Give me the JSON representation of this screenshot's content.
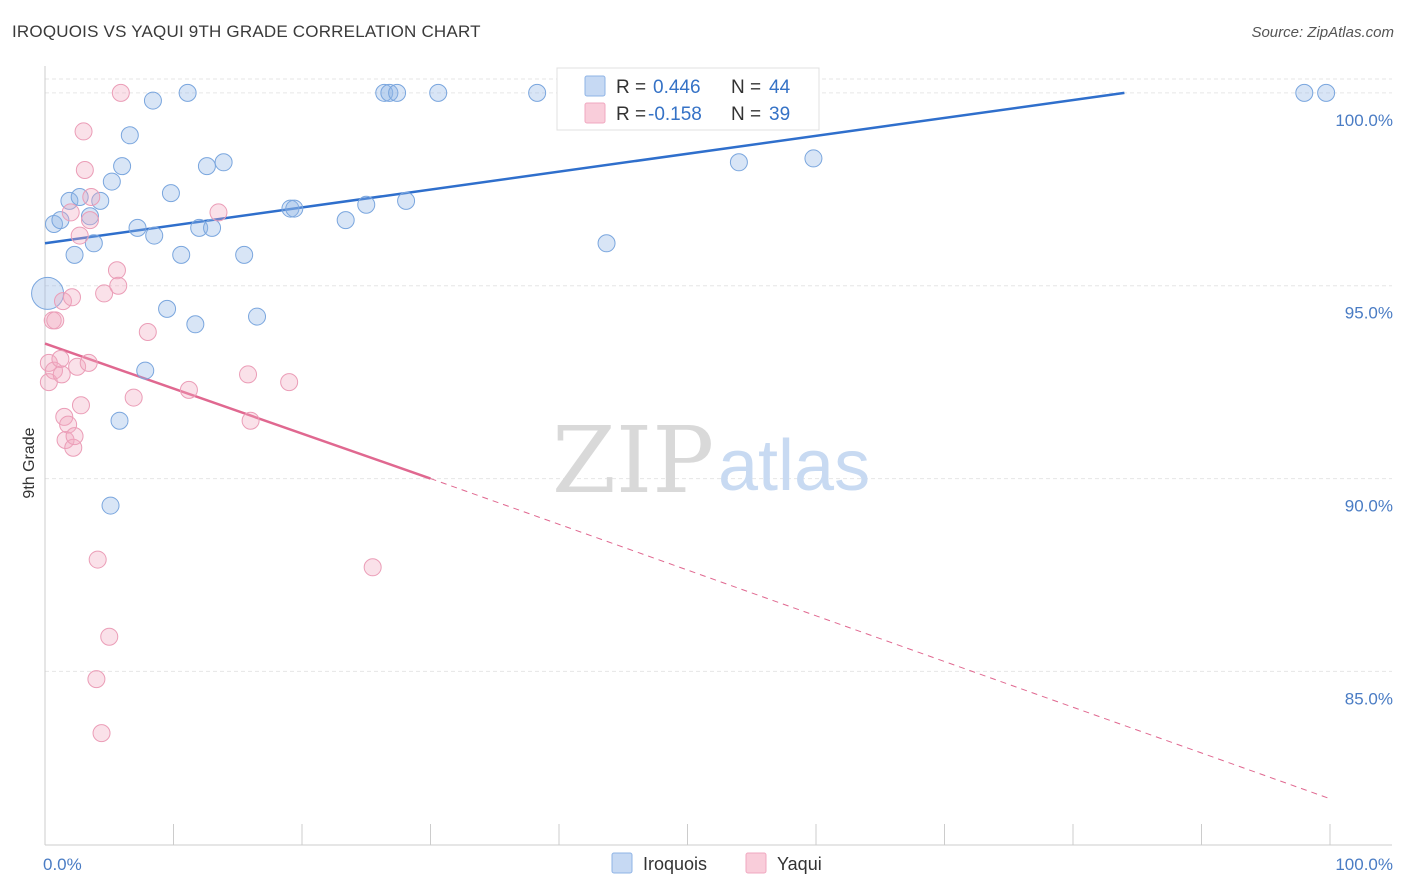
{
  "title": "IROQUOIS VS YAQUI 9TH GRADE CORRELATION CHART",
  "source": "Source: ZipAtlas.com",
  "watermark": {
    "part1": "ZIP",
    "part2": "atlas"
  },
  "chart_data": {
    "type": "scatter",
    "title": "IROQUOIS VS YAQUI 9TH GRADE CORRELATION CHART",
    "xlabel": "",
    "ylabel": "9th Grade",
    "xlim": [
      0,
      100
    ],
    "ylim": [
      80.5,
      100.8
    ],
    "x_tick_labels": [
      "0.0%",
      "100.0%"
    ],
    "y_ticks": [
      100,
      95,
      90,
      85
    ],
    "y_tick_labels": [
      "100.0%",
      "95.0%",
      "90.0%",
      "85.0%"
    ],
    "grid": true,
    "colors": {
      "Iroquois": "#8fb4e6",
      "Yaqui": "#f0a8c0",
      "Iroquois_line": "#2f6fcc",
      "Yaqui_line": "#e06890"
    },
    "legend": {
      "entries": [
        {
          "series": "Iroquois",
          "r_label": "R =",
          "r_value": "0.446",
          "n_label": "N =",
          "n_value": "44"
        },
        {
          "series": "Yaqui",
          "r_label": "R =",
          "r_value": "-0.158",
          "n_label": "N =",
          "n_value": "39"
        }
      ]
    },
    "series": [
      {
        "name": "Iroquois",
        "points": [
          [
            0.2,
            94.8
          ],
          [
            0.7,
            96.6
          ],
          [
            1.2,
            96.7
          ],
          [
            1.9,
            97.2
          ],
          [
            2.3,
            95.8
          ],
          [
            2.7,
            97.3
          ],
          [
            3.5,
            96.8
          ],
          [
            3.8,
            96.1
          ],
          [
            4.3,
            97.2
          ],
          [
            5.1,
            89.3
          ],
          [
            5.2,
            97.7
          ],
          [
            5.8,
            91.5
          ],
          [
            6.0,
            98.1
          ],
          [
            6.6,
            98.9
          ],
          [
            7.2,
            96.5
          ],
          [
            7.8,
            92.8
          ],
          [
            8.5,
            96.3
          ],
          [
            8.4,
            99.8
          ],
          [
            9.5,
            94.4
          ],
          [
            9.8,
            97.4
          ],
          [
            10.6,
            95.8
          ],
          [
            11.1,
            100.0
          ],
          [
            11.7,
            94.0
          ],
          [
            12.0,
            96.5
          ],
          [
            12.6,
            98.1
          ],
          [
            13.0,
            96.5
          ],
          [
            13.9,
            98.2
          ],
          [
            15.5,
            95.8
          ],
          [
            16.5,
            94.2
          ],
          [
            19.1,
            97.0
          ],
          [
            19.4,
            97.0
          ],
          [
            23.4,
            96.7
          ],
          [
            25.0,
            97.1
          ],
          [
            26.4,
            100.0
          ],
          [
            26.8,
            100.0
          ],
          [
            27.4,
            100.0
          ],
          [
            28.1,
            97.2
          ],
          [
            30.6,
            100.0
          ],
          [
            38.3,
            100.0
          ],
          [
            43.7,
            96.1
          ],
          [
            54.0,
            98.2
          ],
          [
            59.8,
            98.3
          ],
          [
            98.0,
            100.0
          ],
          [
            99.7,
            100.0
          ]
        ],
        "trend": {
          "x0": 0,
          "y0": 96.1,
          "x1": 84,
          "y1": 100.0
        }
      },
      {
        "name": "Yaqui",
        "points": [
          [
            0.3,
            93.0
          ],
          [
            0.3,
            92.5
          ],
          [
            0.6,
            94.1
          ],
          [
            0.7,
            92.8
          ],
          [
            0.8,
            94.1
          ],
          [
            1.2,
            93.1
          ],
          [
            1.3,
            92.7
          ],
          [
            1.4,
            94.6
          ],
          [
            1.5,
            91.6
          ],
          [
            1.6,
            91.0
          ],
          [
            1.8,
            91.4
          ],
          [
            2.0,
            96.9
          ],
          [
            2.1,
            94.7
          ],
          [
            2.2,
            90.8
          ],
          [
            2.3,
            91.1
          ],
          [
            2.5,
            92.9
          ],
          [
            2.7,
            96.3
          ],
          [
            2.8,
            91.9
          ],
          [
            3.0,
            99.0
          ],
          [
            3.1,
            98.0
          ],
          [
            3.4,
            93.0
          ],
          [
            3.5,
            96.7
          ],
          [
            3.6,
            97.3
          ],
          [
            4.0,
            84.8
          ],
          [
            4.1,
            87.9
          ],
          [
            4.4,
            83.4
          ],
          [
            4.6,
            94.8
          ],
          [
            5.0,
            85.9
          ],
          [
            5.6,
            95.4
          ],
          [
            5.7,
            95.0
          ],
          [
            5.9,
            100.0
          ],
          [
            6.9,
            92.1
          ],
          [
            8.0,
            93.8
          ],
          [
            11.2,
            92.3
          ],
          [
            13.5,
            96.9
          ],
          [
            15.8,
            92.7
          ],
          [
            16.0,
            91.5
          ],
          [
            19.0,
            92.5
          ],
          [
            25.5,
            87.7
          ]
        ],
        "trend": {
          "x0": 0,
          "y0": 93.5,
          "x1": 30,
          "y1": 90.0,
          "dashed_to_x": 100,
          "dashed_to_y": 81.7
        }
      }
    ]
  }
}
